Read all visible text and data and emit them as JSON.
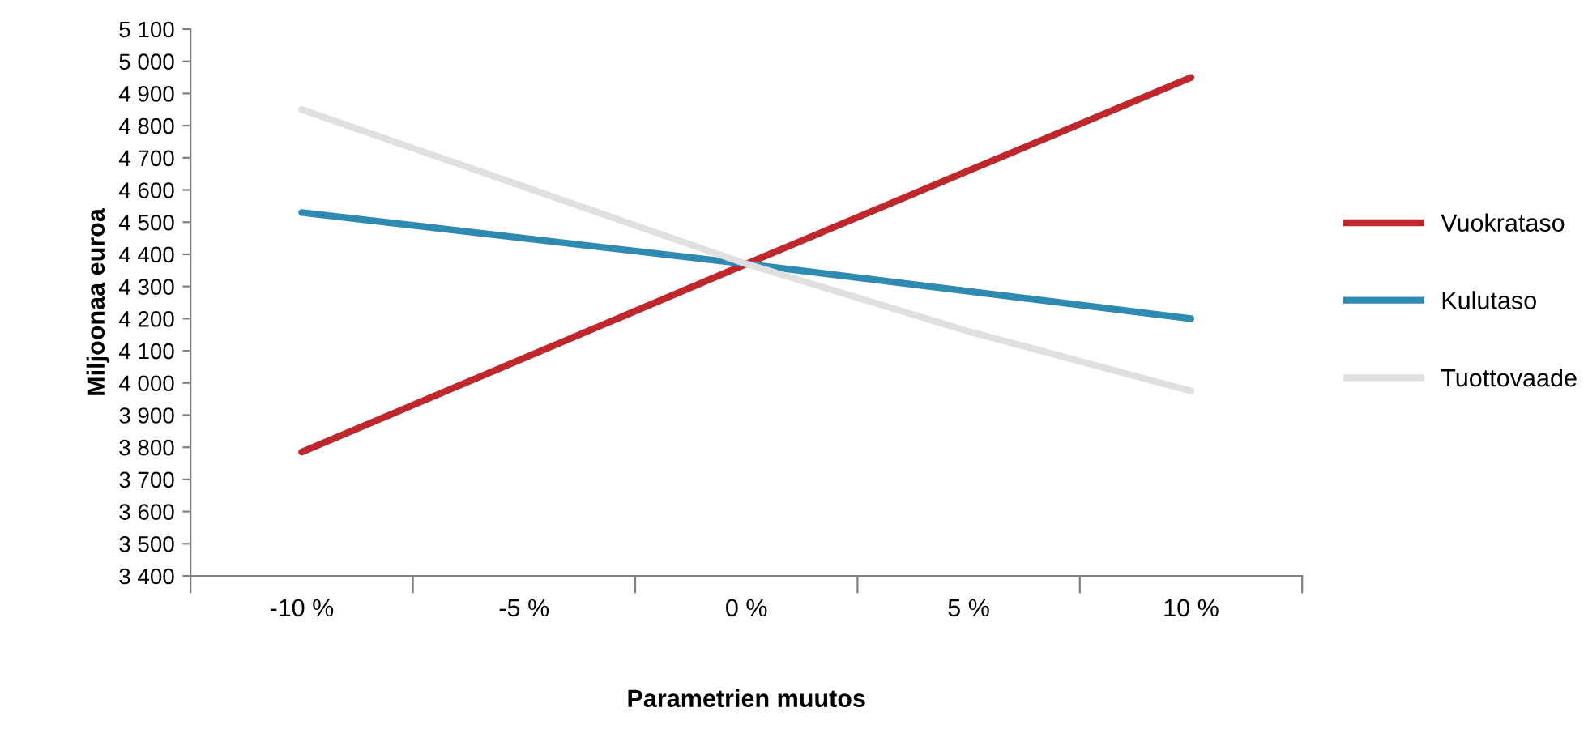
{
  "chart_data": {
    "type": "line",
    "xlabel": "Parametrien muutos",
    "ylabel": "Miljoonaa euroa",
    "categories": [
      "-10 %",
      "-5 %",
      "0 %",
      "5 %",
      "10 %"
    ],
    "series": [
      {
        "name": "Vuokrataso",
        "color": "#c0272d",
        "values": [
          3785,
          4077,
          4370,
          4660,
          4950
        ]
      },
      {
        "name": "Kulutaso",
        "color": "#2e8ab0",
        "values": [
          4530,
          4450,
          4370,
          4285,
          4200
        ]
      },
      {
        "name": "Tuottovaade",
        "color": "#e0e0e0",
        "values": [
          4850,
          4610,
          4370,
          4160,
          3975
        ]
      }
    ],
    "ylim": [
      3400,
      5100
    ],
    "yticks": [
      {
        "value": 3400,
        "label": "3 400"
      },
      {
        "value": 3500,
        "label": "3 500"
      },
      {
        "value": 3600,
        "label": "3 600"
      },
      {
        "value": 3700,
        "label": "3 700"
      },
      {
        "value": 3800,
        "label": "3 800"
      },
      {
        "value": 3900,
        "label": "3 900"
      },
      {
        "value": 4000,
        "label": "4 000"
      },
      {
        "value": 4100,
        "label": "4 100"
      },
      {
        "value": 4200,
        "label": "4 200"
      },
      {
        "value": 4300,
        "label": "4 300"
      },
      {
        "value": 4400,
        "label": "4 400"
      },
      {
        "value": 4500,
        "label": "4 500"
      },
      {
        "value": 4600,
        "label": "4 600"
      },
      {
        "value": 4700,
        "label": "4 700"
      },
      {
        "value": 4800,
        "label": "4 800"
      },
      {
        "value": 4900,
        "label": "4 900"
      },
      {
        "value": 5000,
        "label": "5 000"
      },
      {
        "value": 5100,
        "label": "5 100"
      }
    ],
    "grid": false,
    "legend": "right",
    "marker": "none",
    "line_style": "solid"
  }
}
